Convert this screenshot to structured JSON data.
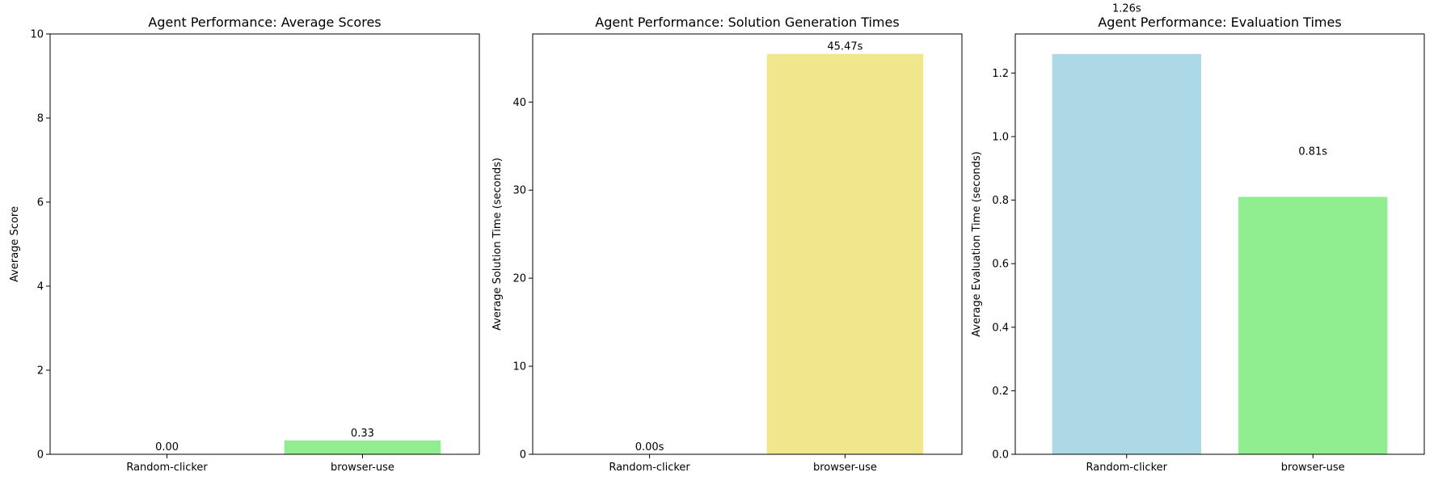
{
  "chart_data": [
    {
      "type": "bar",
      "title": "Agent Performance: Average Scores",
      "xlabel": "",
      "ylabel": "Average Score",
      "categories": [
        "Random-clicker",
        "browser-use"
      ],
      "values": [
        0.0,
        0.33
      ],
      "value_labels": [
        "0.00",
        "0.33"
      ],
      "colors": [
        "#add8e6",
        "#90ee90"
      ],
      "ylim": [
        0,
        10
      ],
      "yticks": [
        0,
        2,
        4,
        6,
        8,
        10
      ],
      "ytick_labels": [
        "0",
        "2",
        "4",
        "6",
        "8",
        "10"
      ],
      "grid": false
    },
    {
      "type": "bar",
      "title": "Agent Performance: Solution Generation Times",
      "xlabel": "",
      "ylabel": "Average Solution Time (seconds)",
      "categories": [
        "Random-clicker",
        "browser-use"
      ],
      "values": [
        0.0,
        45.47
      ],
      "value_labels": [
        "0.00s",
        "45.47s"
      ],
      "colors": [
        "#add8e6",
        "#f0e68c"
      ],
      "ylim": [
        0,
        47.74
      ],
      "yticks": [
        0,
        10,
        20,
        30,
        40
      ],
      "ytick_labels": [
        "0",
        "10",
        "20",
        "30",
        "40"
      ],
      "grid": false
    },
    {
      "type": "bar",
      "title": "Agent Performance: Evaluation Times",
      "xlabel": "",
      "ylabel": "Average Evaluation Time (seconds)",
      "categories": [
        "Random-clicker",
        "browser-use"
      ],
      "values": [
        1.26,
        0.81
      ],
      "value_labels": [
        "1.26s",
        "0.81s"
      ],
      "colors": [
        "#add8e6",
        "#90ee90"
      ],
      "ylim": [
        0,
        1.323
      ],
      "yticks": [
        0.0,
        0.2,
        0.4,
        0.6,
        0.8,
        1.0,
        1.2
      ],
      "ytick_labels": [
        "0.0",
        "0.2",
        "0.4",
        "0.6",
        "0.8",
        "1.0",
        "1.2"
      ],
      "grid": false
    }
  ]
}
